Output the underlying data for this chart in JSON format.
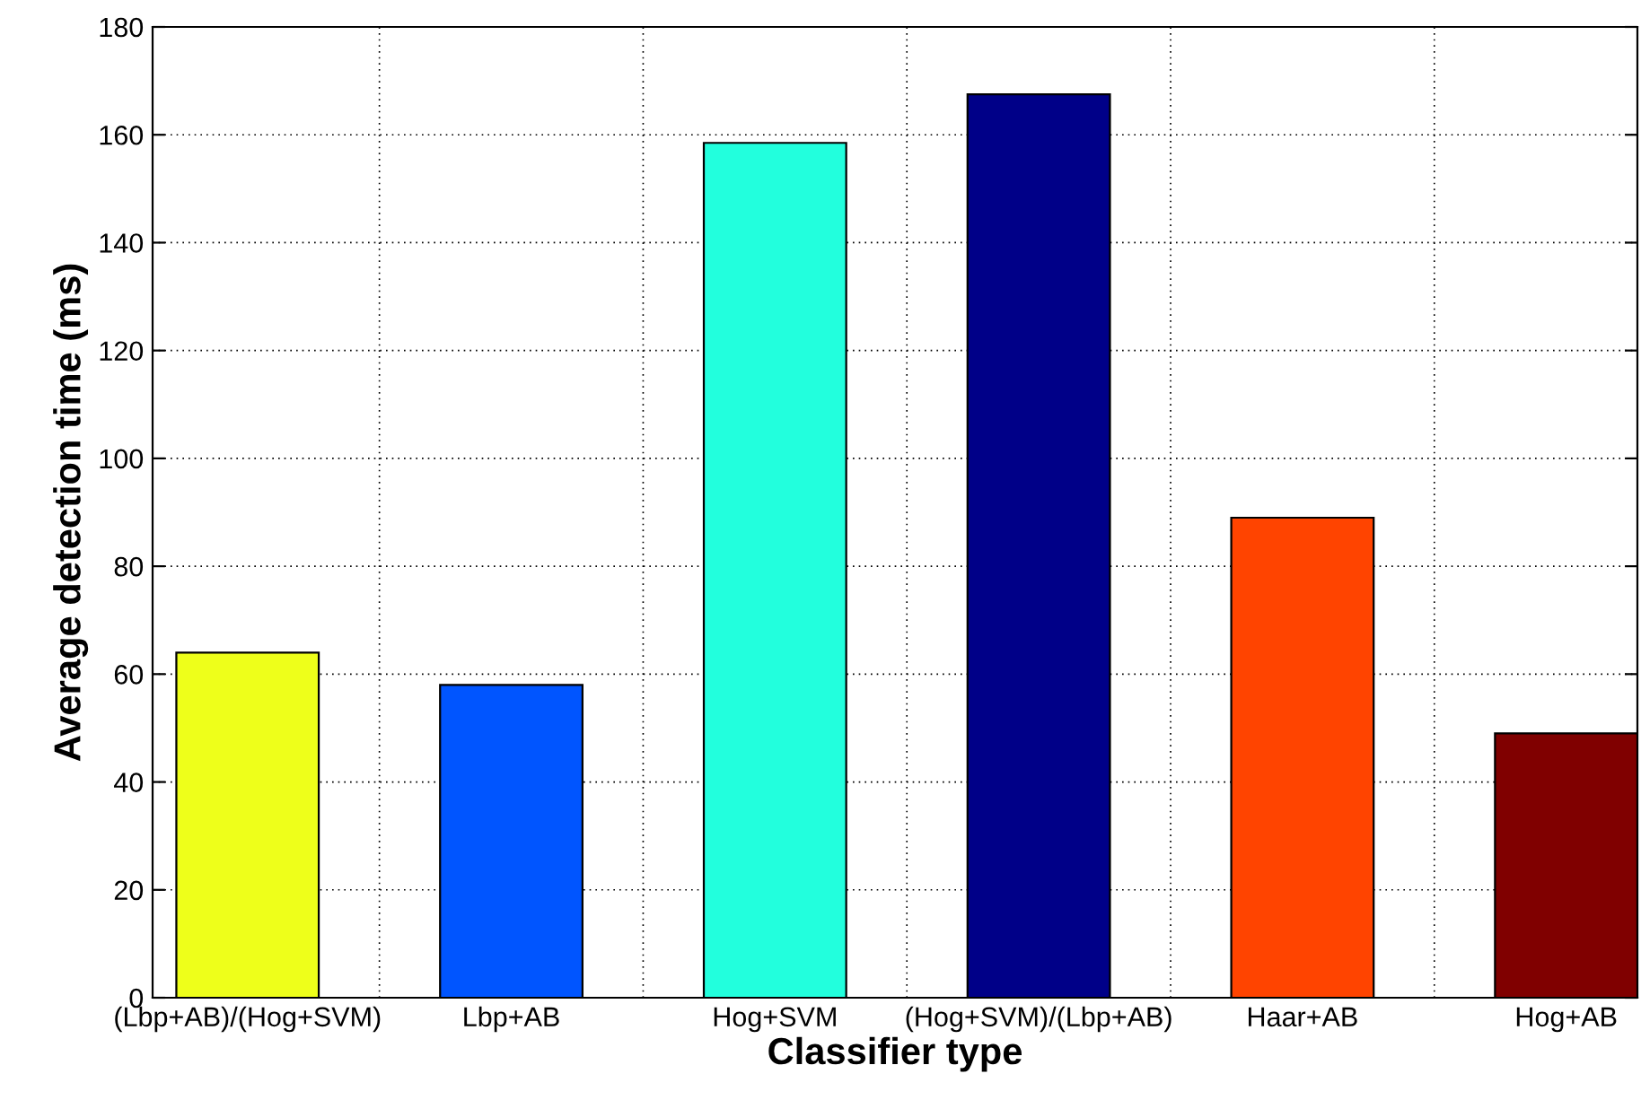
{
  "chart_data": {
    "type": "bar",
    "xlabel": "Classifier type",
    "ylabel": "Average detection time (ms)",
    "categories": [
      "(Lbp+AB)/(Hog+SVM)",
      "Lbp+AB",
      "Hog+SVM",
      "(Hog+SVM)/(Lbp+AB)",
      "Haar+AB",
      "Hog+AB"
    ],
    "values": [
      64,
      58,
      158.5,
      167.5,
      89,
      49
    ],
    "colors": [
      "#eeff1a",
      "#0055ff",
      "#22ffdd",
      "#000088",
      "#ff4400",
      "#800000"
    ],
    "ylim": [
      0,
      180
    ],
    "yticks": [
      0,
      20,
      40,
      60,
      80,
      100,
      120,
      140,
      160,
      180
    ],
    "grid": true
  }
}
